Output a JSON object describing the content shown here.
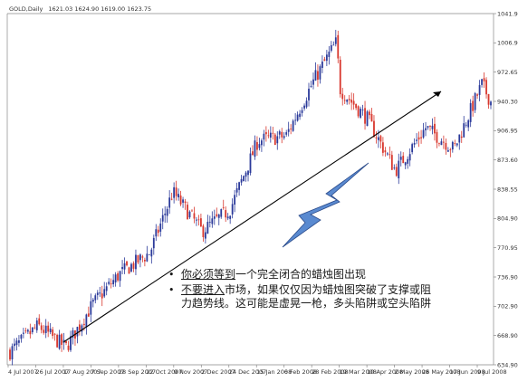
{
  "chart_data": {
    "type": "candlestick",
    "header": {
      "symbol": "GOLD,Daily",
      "ohlc": "1621.03 1624.90 1619.00 1623.75"
    },
    "y_ticks": [
      "1041.95",
      "1006.90",
      "972.65",
      "940.30",
      "906.95",
      "873.60",
      "838.55",
      "804.90",
      "770.95",
      "736.90",
      "702.90",
      "668.90",
      "634.90"
    ],
    "x_ticks": [
      "4 Jul 2007",
      "26 Jul 2007",
      "17 Aug 2007",
      "7 Sep 2007",
      "28 Sep 2007",
      "22 Oct 2007",
      "9 Nov 2007",
      "2 Dec 2007",
      "24 Dec 2007",
      "15 Jan 2008",
      "6 Feb 2008",
      "28 Feb 2008",
      "19 Mar 2008",
      "10 Apr 2008",
      "2 May 2008",
      "26 May 2008",
      "17 Jun 2008",
      "9 Jul 2008"
    ],
    "ylim": [
      634.9,
      1041.95
    ],
    "approx_close_path": [
      {
        "date": "2007-07-04",
        "close": 650
      },
      {
        "date": "2007-07-26",
        "close": 680
      },
      {
        "date": "2007-08-17",
        "close": 655
      },
      {
        "date": "2007-09-07",
        "close": 705
      },
      {
        "date": "2007-09-28",
        "close": 740
      },
      {
        "date": "2007-10-22",
        "close": 765
      },
      {
        "date": "2007-11-09",
        "close": 835
      },
      {
        "date": "2007-12-02",
        "close": 790
      },
      {
        "date": "2007-12-24",
        "close": 815
      },
      {
        "date": "2008-01-15",
        "close": 895
      },
      {
        "date": "2008-02-06",
        "close": 900
      },
      {
        "date": "2008-02-28",
        "close": 965
      },
      {
        "date": "2008-03-17",
        "close": 1010
      },
      {
        "date": "2008-03-19",
        "close": 955
      },
      {
        "date": "2008-04-10",
        "close": 920
      },
      {
        "date": "2008-05-02",
        "close": 860
      },
      {
        "date": "2008-05-26",
        "close": 910
      },
      {
        "date": "2008-06-17",
        "close": 885
      },
      {
        "date": "2008-07-09",
        "close": 960
      },
      {
        "date": "2008-07-16",
        "close": 940
      }
    ],
    "colors": {
      "up": "#2b3a9a",
      "down": "#d8372d",
      "trendline": "#000000",
      "arrow_fill": "#5a8ad0"
    },
    "annotations": {
      "bullet1": {
        "part1": "你必须等到",
        "part2": "一个完全闭合的蜡烛图出现"
      },
      "bullet2": {
        "part1": "不要进入",
        "part2": "市场，如果仅仅因为蜡烛图突破了支撑或阻力趋势线。这可能是虚晃一枪，多头陷阱或空头陷阱"
      }
    }
  }
}
